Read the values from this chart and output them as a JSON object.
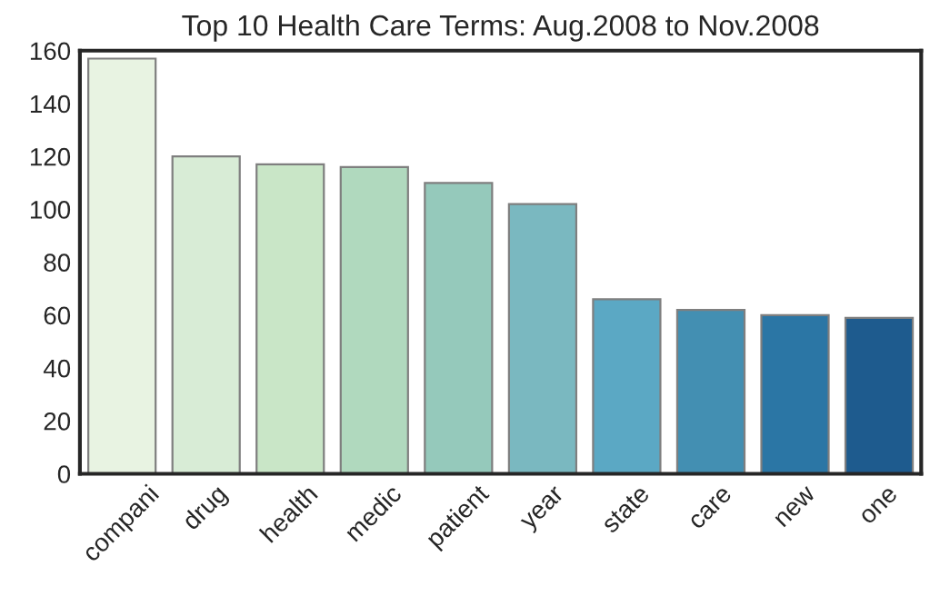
{
  "chart_data": {
    "type": "bar",
    "title": "Top 10 Health Care Terms: Aug.2008 to Nov.2008",
    "categories": [
      "compani",
      "drug",
      "health",
      "medic",
      "patient",
      "year",
      "state",
      "care",
      "new",
      "one"
    ],
    "values": [
      157,
      120,
      117,
      116,
      110,
      102,
      66,
      62,
      60,
      59
    ],
    "colors": [
      "#e8f3e2",
      "#d8ecd6",
      "#c9e6c7",
      "#b0d9be",
      "#95c9bb",
      "#7ab8c0",
      "#5ba8c4",
      "#438fb2",
      "#2b76a5",
      "#1e5b8e"
    ],
    "ylim": [
      0,
      160
    ],
    "yticks": [
      0,
      20,
      40,
      60,
      80,
      100,
      120,
      140,
      160
    ],
    "grid": false
  }
}
